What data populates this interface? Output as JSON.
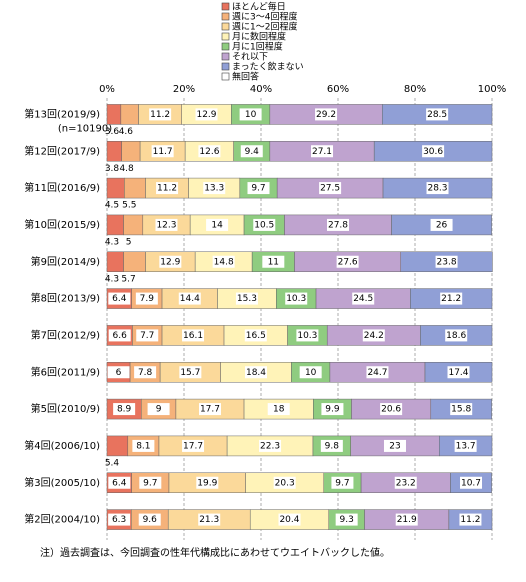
{
  "chart_data": {
    "type": "stacked_bar_horizontal",
    "categories": [
      "第13回(2019/9)",
      "第12回(2017/9)",
      "第11回(2016/9)",
      "第10回(2015/9)",
      "第9回(2014/9)",
      "第8回(2013/9)",
      "第7回(2012/9)",
      "第6回(2011/9)",
      "第5回(2010/9)",
      "第4回(2006/10)",
      "第3回(2005/10)",
      "第2回(2004/10)"
    ],
    "n_label": "(n=10190)",
    "series": [
      {
        "name": "ほとんど毎日",
        "color": "#e8735e",
        "values": [
          3.6,
          3.8,
          4.5,
          4.3,
          4.3,
          6.4,
          6.6,
          6.0,
          8.9,
          5.4,
          6.4,
          6.3
        ]
      },
      {
        "name": "週に3～4回程度",
        "color": "#f5b27a",
        "values": [
          4.6,
          4.8,
          5.5,
          5.0,
          5.7,
          7.9,
          7.7,
          7.8,
          9.0,
          8.1,
          9.7,
          9.6
        ]
      },
      {
        "name": "週に1～2回程度",
        "color": "#fbd99a",
        "values": [
          11.2,
          11.7,
          11.2,
          12.3,
          12.9,
          14.4,
          16.1,
          15.7,
          17.7,
          17.7,
          19.9,
          21.3
        ]
      },
      {
        "name": "月に数回程度",
        "color": "#fff3b8",
        "values": [
          12.9,
          12.6,
          13.3,
          14.0,
          14.8,
          15.3,
          16.5,
          18.4,
          18.0,
          22.3,
          20.3,
          20.4
        ]
      },
      {
        "name": "月に1回程度",
        "color": "#8fcc80",
        "values": [
          10.0,
          9.4,
          9.7,
          10.5,
          11.0,
          10.3,
          10.3,
          10.0,
          9.9,
          9.8,
          9.7,
          9.3
        ]
      },
      {
        "name": "それ以下",
        "color": "#bfa3cf",
        "values": [
          29.2,
          27.1,
          27.5,
          27.8,
          27.6,
          24.5,
          24.2,
          24.7,
          20.6,
          23.0,
          23.2,
          21.9
        ]
      },
      {
        "name": "まったく飲まない",
        "color": "#909fd6",
        "values": [
          28.5,
          30.6,
          28.3,
          26.0,
          23.8,
          21.2,
          18.6,
          17.4,
          15.8,
          13.7,
          10.7,
          11.2
        ]
      },
      {
        "name": "無回答",
        "color": "#ffffff",
        "values": [
          null,
          null,
          null,
          null,
          null,
          null,
          null,
          null,
          null,
          null,
          null,
          null
        ]
      }
    ],
    "xlim": [
      0,
      100
    ],
    "xticks": [
      {
        "value": 0,
        "label": "0%"
      },
      {
        "value": 20,
        "label": "20%"
      },
      {
        "value": 40,
        "label": "40%"
      },
      {
        "value": 60,
        "label": "60%"
      },
      {
        "value": 80,
        "label": "80%"
      },
      {
        "value": 100,
        "label": "100%"
      }
    ],
    "grid": true,
    "note": "注）過去調査は、今回調査の性年代構成比にあわせてウエイトバックした値。"
  }
}
